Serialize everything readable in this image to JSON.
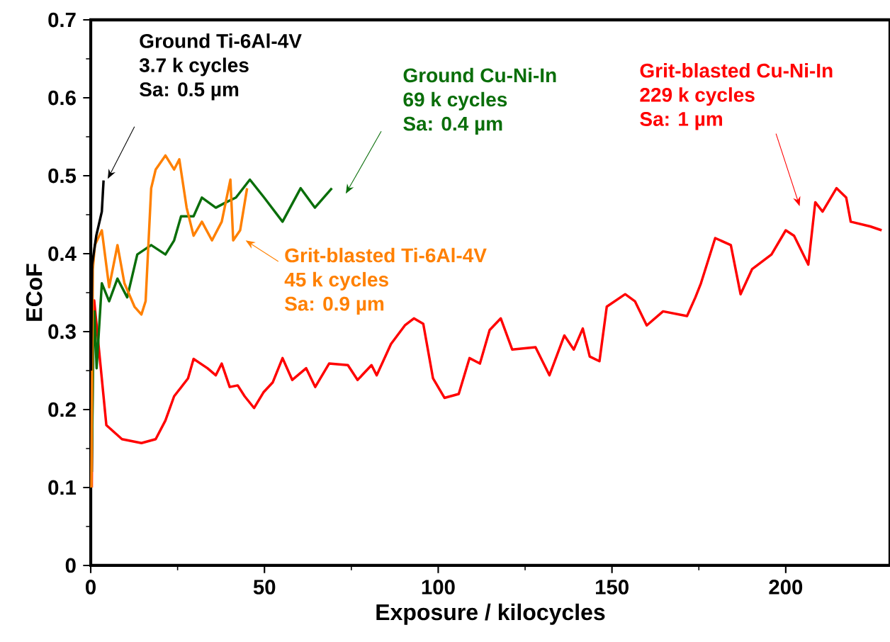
{
  "chart_data": {
    "type": "line",
    "xlabel": "Exposure / kilocycles",
    "ylabel": "ECoF",
    "xlim": [
      0,
      230
    ],
    "ylim": [
      0,
      0.7
    ],
    "xticks": [
      0,
      50,
      100,
      150,
      200
    ],
    "yticks": [
      0,
      0.1,
      0.2,
      0.3,
      0.4,
      0.5,
      0.6,
      0.7
    ],
    "series": [
      {
        "name": "Grit-blasted Cu-Ni-In",
        "color": "#ff0000",
        "x": [
          0.3,
          0.7,
          1,
          4.5,
          9,
          14.6,
          18.7,
          21.5,
          24,
          28,
          29.6,
          33.6,
          36,
          37.7,
          40,
          42.3,
          44.3,
          47,
          49.7,
          52.4,
          55.2,
          58,
          62,
          64.6,
          68.6,
          74,
          76.8,
          80.8,
          82.3,
          86.4,
          90.4,
          93,
          95.7,
          98.5,
          101.8,
          105.9,
          109,
          112,
          114.8,
          118,
          121.3,
          128,
          132,
          136.3,
          139,
          141.6,
          143.6,
          146.4,
          148.5,
          153.8,
          156.6,
          160,
          164.7,
          171.6,
          174,
          175.6,
          179.7,
          184.2,
          187,
          190.3,
          195.9,
          200,
          202.4,
          206.5,
          208.5,
          210.6,
          214.6,
          217.4,
          218.7,
          224.3,
          227.6
        ],
        "values": [
          0.1,
          0.33,
          0.34,
          0.18,
          0.162,
          0.157,
          0.162,
          0.186,
          0.217,
          0.24,
          0.265,
          0.253,
          0.244,
          0.259,
          0.229,
          0.231,
          0.217,
          0.202,
          0.222,
          0.235,
          0.266,
          0.238,
          0.253,
          0.229,
          0.259,
          0.257,
          0.238,
          0.257,
          0.244,
          0.284,
          0.308,
          0.317,
          0.31,
          0.24,
          0.215,
          0.22,
          0.266,
          0.259,
          0.302,
          0.317,
          0.277,
          0.28,
          0.244,
          0.295,
          0.277,
          0.304,
          0.268,
          0.262,
          0.332,
          0.348,
          0.339,
          0.308,
          0.326,
          0.32,
          0.344,
          0.362,
          0.42,
          0.411,
          0.348,
          0.38,
          0.399,
          0.43,
          0.423,
          0.386,
          0.466,
          0.454,
          0.484,
          0.472,
          0.441,
          0.435,
          0.43
        ]
      },
      {
        "name": "Ground Cu-Ni-In",
        "color": "#0a6e0a",
        "x": [
          0.3,
          0.8,
          1.1,
          1.7,
          3.2,
          5.3,
          7.7,
          10.5,
          13.4,
          17.4,
          21.5,
          24,
          26,
          29.6,
          32,
          36,
          39,
          41.8,
          45.8,
          49.9,
          55.2,
          60.4,
          64.5,
          69.4
        ],
        "values": [
          0.12,
          0.3,
          0.326,
          0.253,
          0.362,
          0.339,
          0.368,
          0.344,
          0.399,
          0.411,
          0.399,
          0.417,
          0.448,
          0.448,
          0.472,
          0.459,
          0.466,
          0.472,
          0.495,
          0.472,
          0.441,
          0.484,
          0.459,
          0.484
        ]
      },
      {
        "name": "Grit-blasted Ti-6Al-4V",
        "color": "#ff8000",
        "x": [
          0.2,
          0.6,
          1.2,
          3.2,
          5.3,
          7.7,
          9.7,
          12.6,
          14.6,
          15.8,
          17.4,
          18.7,
          21.5,
          24,
          25.5,
          27.6,
          29.6,
          32,
          34.9,
          37.7,
          40.2,
          41,
          43,
          45
        ],
        "values": [
          0.1,
          0.38,
          0.411,
          0.43,
          0.357,
          0.411,
          0.362,
          0.332,
          0.322,
          0.339,
          0.484,
          0.508,
          0.526,
          0.508,
          0.521,
          0.459,
          0.423,
          0.441,
          0.417,
          0.441,
          0.495,
          0.417,
          0.43,
          0.484
        ]
      },
      {
        "name": "Ground Ti-6Al-4V",
        "color": "#000000",
        "x": [
          0.1,
          0.4,
          1.6,
          3.2,
          3.7
        ],
        "values": [
          0.25,
          0.386,
          0.423,
          0.454,
          0.494
        ]
      }
    ],
    "annotations": [
      "229 k cycles",
      "Sa: 1 µm",
      "69 k cycles",
      "Sa: 0.4 µm",
      "45 k cycles",
      "Sa: 0.9 µm",
      "3.7 k cycles",
      "Sa: 0.5 µm"
    ],
    "grid": false
  }
}
